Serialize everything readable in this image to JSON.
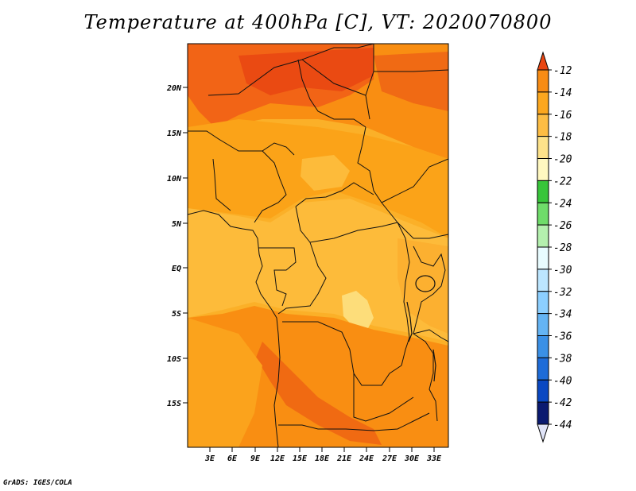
{
  "title": "Temperature at 400hPa [C], VT: 2020070800",
  "credit": "GrADS: IGES/COLA",
  "map": {
    "variable": "Temperature",
    "level": "400hPa",
    "units": "C",
    "valid_time": "2020070800",
    "lat_labels": [
      "20N",
      "15N",
      "10N",
      "5N",
      "EQ",
      "5S",
      "10S",
      "15S"
    ],
    "lon_labels": [
      "3E",
      "6E",
      "9E",
      "12E",
      "15E",
      "18E",
      "21E",
      "24E",
      "27E",
      "30E",
      "33E"
    ],
    "field_regions": [
      {
        "name": "sahara-warm-core",
        "band": "-12 to -14",
        "color": "#f05a10"
      },
      {
        "name": "northern-band",
        "band": "-14 to -16",
        "color": "#f98e12"
      },
      {
        "name": "sahel-band",
        "band": "-14 to -16",
        "color": "#fba318"
      },
      {
        "name": "central-basin",
        "band": "-16 to -18",
        "color": "#fdbb3a"
      },
      {
        "name": "congo-cool-patch",
        "band": "-18 to -20",
        "color": "#fddd7a"
      },
      {
        "name": "angola-warm-streak",
        "band": "-12 to -14",
        "color": "#f06a12"
      }
    ]
  },
  "colorbar": {
    "labels": [
      "-12",
      "-14",
      "-16",
      "-18",
      "-20",
      "-22",
      "-24",
      "-26",
      "-28",
      "-30",
      "-32",
      "-34",
      "-36",
      "-38",
      "-40",
      "-42",
      "-44"
    ],
    "colors": [
      "#ea4612",
      "#f88c14",
      "#fca71e",
      "#fdbd44",
      "#fde28a",
      "#fff8c0",
      "#38c53a",
      "#6fdc6a",
      "#b4f0ae",
      "#e8fcff",
      "#bce6ff",
      "#8ccfff",
      "#64b4f4",
      "#3a90e6",
      "#1e6cd8",
      "#0a48c2",
      "#0a1a70",
      "#e0e4f8"
    ]
  }
}
